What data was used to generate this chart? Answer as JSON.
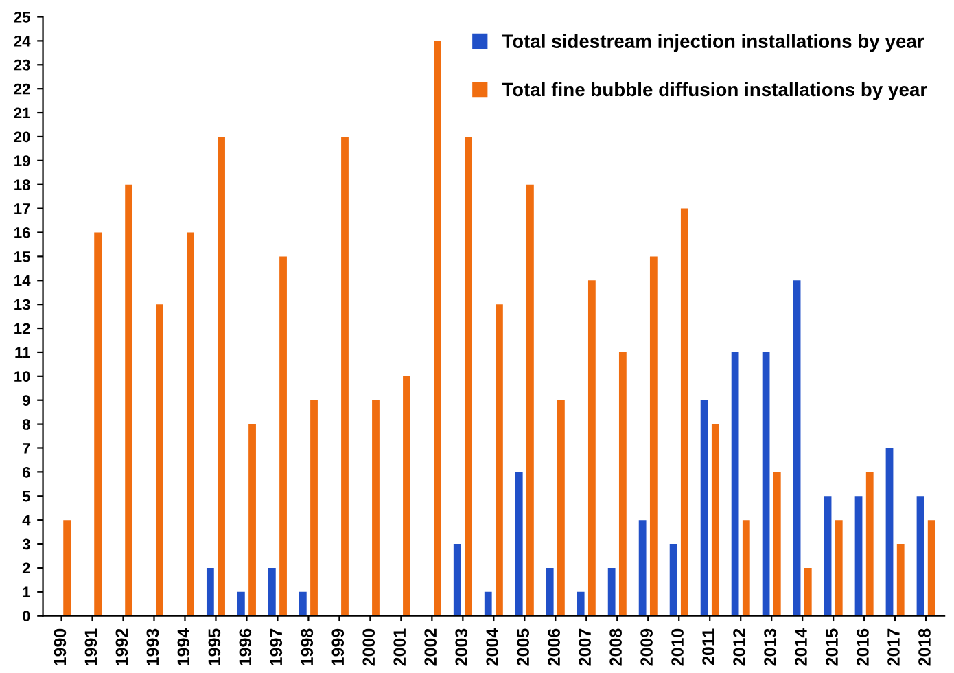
{
  "chart_data": {
    "type": "bar",
    "categories": [
      "1990",
      "1991",
      "1992",
      "1993",
      "1994",
      "1995",
      "1996",
      "1997",
      "1998",
      "1999",
      "2000",
      "2001",
      "2002",
      "2003",
      "2004",
      "2005",
      "2006",
      "2007",
      "2008",
      "2009",
      "2010",
      "2011",
      "2012",
      "2013",
      "2014",
      "2015",
      "2016",
      "2017",
      "2018"
    ],
    "series": [
      {
        "name": "Total sidestream injection installations by year",
        "color": "#2150c8",
        "values": [
          0,
          0,
          0,
          0,
          0,
          2,
          1,
          2,
          1,
          0,
          0,
          0,
          0,
          3,
          1,
          6,
          2,
          1,
          2,
          4,
          3,
          9,
          11,
          11,
          14,
          5,
          5,
          7,
          5
        ]
      },
      {
        "name": "Total fine bubble diffusion installations by year",
        "color": "#f06d10",
        "values": [
          4,
          16,
          18,
          13,
          16,
          20,
          8,
          15,
          9,
          20,
          9,
          10,
          24,
          20,
          13,
          18,
          9,
          14,
          11,
          15,
          17,
          8,
          4,
          6,
          2,
          4,
          6,
          3,
          4
        ]
      }
    ],
    "ylim": [
      0,
      25
    ],
    "yticks": [
      0,
      1,
      2,
      3,
      4,
      5,
      6,
      7,
      8,
      9,
      10,
      11,
      12,
      13,
      14,
      15,
      16,
      17,
      18,
      19,
      20,
      21,
      22,
      23,
      24,
      25
    ],
    "grid": false,
    "legend": "top right"
  }
}
